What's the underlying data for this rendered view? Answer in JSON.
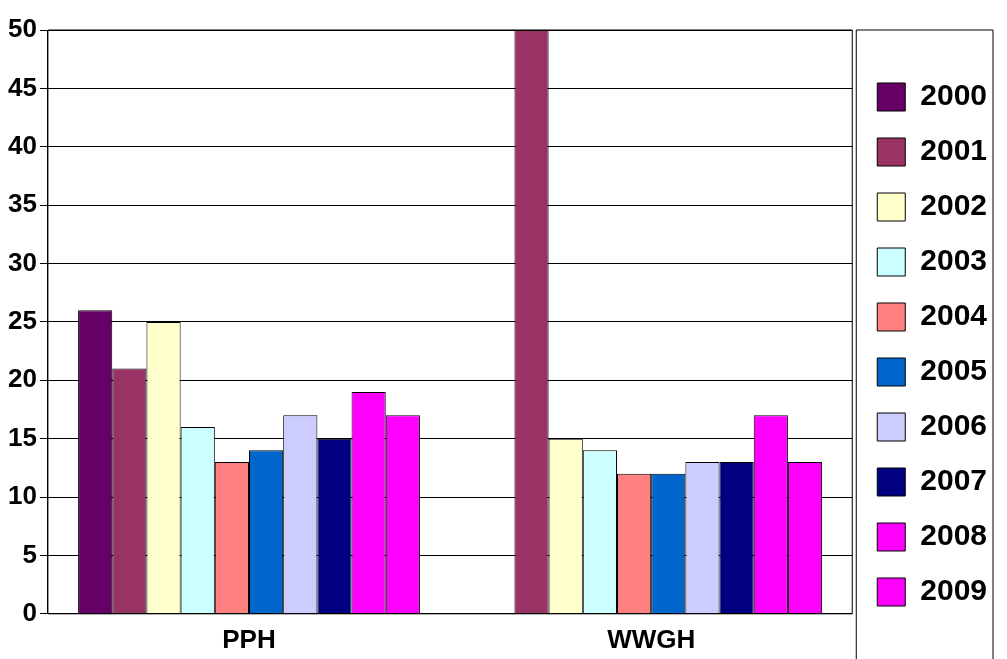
{
  "chart_data": {
    "type": "bar",
    "categories": [
      "PPH",
      "WWGH"
    ],
    "series": [
      {
        "name": "2000",
        "color": "#660066",
        "values": [
          26,
          null
        ]
      },
      {
        "name": "2001",
        "color": "#993366",
        "values": [
          21,
          50
        ]
      },
      {
        "name": "2002",
        "color": "#ffffcc",
        "values": [
          25,
          15
        ]
      },
      {
        "name": "2003",
        "color": "#ccffff",
        "values": [
          16,
          14
        ]
      },
      {
        "name": "2004",
        "color": "#ff8080",
        "values": [
          13,
          12
        ]
      },
      {
        "name": "2005",
        "color": "#0066cc",
        "values": [
          14,
          12
        ]
      },
      {
        "name": "2006",
        "color": "#ccccff",
        "values": [
          17,
          13
        ]
      },
      {
        "name": "2007",
        "color": "#000080",
        "values": [
          15,
          13
        ]
      },
      {
        "name": "2008",
        "color": "#ff00ff",
        "values": [
          19,
          17
        ]
      },
      {
        "name": "2009",
        "color": "#ff00ff",
        "values": [
          17,
          13
        ]
      }
    ],
    "ylim": [
      0,
      50
    ],
    "yticks": [
      0,
      5,
      10,
      15,
      20,
      25,
      30,
      35,
      40,
      45,
      50
    ],
    "grid": "y",
    "legend": "right"
  }
}
